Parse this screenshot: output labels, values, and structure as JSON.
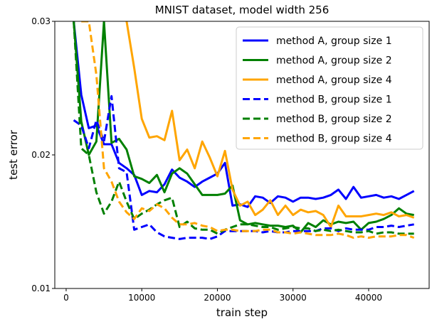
{
  "chart_data": {
    "type": "line",
    "title": "MNIST dataset, model width 256",
    "xlabel": "train step",
    "ylabel": "test error",
    "xlim": [
      -1500,
      48000
    ],
    "ylim": [
      0.01,
      0.03
    ],
    "x_ticks": [
      0,
      10000,
      20000,
      30000,
      40000
    ],
    "x_tick_labels": [
      "0",
      "10000",
      "20000",
      "30000",
      "40000"
    ],
    "y_ticks": [
      0.01,
      0.02,
      0.03
    ],
    "y_tick_labels": [
      "0.01",
      "0.02",
      "0.03"
    ],
    "grid": false,
    "legend_position": "top-right",
    "series": [
      {
        "name": "method A, group size 1",
        "color": "#0000ff",
        "style": "solid",
        "x": [
          1000,
          2000,
          3000,
          4000,
          5000,
          6000,
          7000,
          8000,
          9000,
          10000,
          11000,
          12000,
          13000,
          14000,
          15000,
          16000,
          17000,
          18000,
          19000,
          20000,
          21000,
          22000,
          23000,
          24000,
          25000,
          26000,
          27000,
          28000,
          29000,
          30000,
          31000,
          32000,
          33000,
          34000,
          35000,
          36000,
          37000,
          38000,
          39000,
          40000,
          41000,
          42000,
          43000,
          44000,
          45000,
          46000
        ],
        "values": [
          0.03,
          0.0245,
          0.022,
          0.0222,
          0.0208,
          0.0208,
          0.0194,
          0.019,
          0.0185,
          0.017,
          0.0173,
          0.0172,
          0.0178,
          0.0189,
          0.0183,
          0.018,
          0.0176,
          0.018,
          0.0183,
          0.0186,
          0.0194,
          0.0162,
          0.0163,
          0.0161,
          0.0169,
          0.0168,
          0.0164,
          0.0169,
          0.0168,
          0.0165,
          0.0168,
          0.0168,
          0.0167,
          0.0168,
          0.017,
          0.0174,
          0.0167,
          0.0176,
          0.0168,
          0.0169,
          0.017,
          0.0168,
          0.0169,
          0.0167,
          0.017,
          0.0173
        ]
      },
      {
        "name": "method A, group size 2",
        "color": "#008000",
        "style": "solid",
        "x": [
          1000,
          2000,
          3000,
          4000,
          5000,
          6000,
          7000,
          8000,
          9000,
          10000,
          11000,
          12000,
          13000,
          14000,
          15000,
          16000,
          17000,
          18000,
          19000,
          20000,
          21000,
          22000,
          23000,
          24000,
          25000,
          26000,
          27000,
          28000,
          29000,
          30000,
          31000,
          32000,
          33000,
          34000,
          35000,
          36000,
          37000,
          38000,
          39000,
          40000,
          41000,
          42000,
          43000,
          44000,
          45000,
          46000
        ],
        "values": [
          0.03,
          0.0225,
          0.02,
          0.021,
          0.03,
          0.0209,
          0.0212,
          0.0204,
          0.0184,
          0.0182,
          0.0179,
          0.0185,
          0.0172,
          0.0186,
          0.019,
          0.0186,
          0.0178,
          0.017,
          0.017,
          0.017,
          0.0171,
          0.0177,
          0.0151,
          0.0148,
          0.0149,
          0.0148,
          0.0147,
          0.0147,
          0.0146,
          0.0147,
          0.0142,
          0.0149,
          0.0146,
          0.0151,
          0.0148,
          0.015,
          0.0149,
          0.015,
          0.0144,
          0.0149,
          0.015,
          0.0152,
          0.0155,
          0.016,
          0.0156,
          0.0155
        ]
      },
      {
        "name": "method A, group size 4",
        "color": "#ffa500",
        "style": "solid",
        "x": [
          8000,
          9000,
          10000,
          11000,
          12000,
          13000,
          14000,
          15000,
          16000,
          17000,
          18000,
          19000,
          20000,
          21000,
          22000,
          23000,
          24000,
          25000,
          26000,
          27000,
          28000,
          29000,
          30000,
          31000,
          32000,
          33000,
          34000,
          35000,
          36000,
          37000,
          38000,
          39000,
          40000,
          41000,
          42000,
          43000,
          44000,
          45000,
          46000
        ],
        "values": [
          0.03,
          0.0265,
          0.0227,
          0.0213,
          0.0214,
          0.0211,
          0.0233,
          0.0196,
          0.0204,
          0.019,
          0.021,
          0.0198,
          0.0184,
          0.0203,
          0.0174,
          0.0162,
          0.0165,
          0.0155,
          0.0159,
          0.0166,
          0.0155,
          0.0162,
          0.0155,
          0.0159,
          0.0157,
          0.0158,
          0.0155,
          0.0146,
          0.0162,
          0.0154,
          0.0154,
          0.0154,
          0.0155,
          0.0156,
          0.0155,
          0.0157,
          0.0154,
          0.0155,
          0.0153
        ]
      },
      {
        "name": "method B, group size 1",
        "color": "#0000ff",
        "style": "dashed",
        "x": [
          1000,
          2000,
          3000,
          4000,
          5000,
          6000,
          7000,
          8000,
          9000,
          10000,
          11000,
          12000,
          13000,
          14000,
          15000,
          16000,
          17000,
          18000,
          19000,
          20000,
          21000,
          22000,
          23000,
          24000,
          25000,
          26000,
          27000,
          28000,
          29000,
          30000,
          31000,
          32000,
          33000,
          34000,
          35000,
          36000,
          37000,
          38000,
          39000,
          40000,
          41000,
          42000,
          43000,
          44000,
          45000,
          46000
        ],
        "values": [
          0.0226,
          0.0222,
          0.0205,
          0.0226,
          0.021,
          0.0244,
          0.019,
          0.0187,
          0.0144,
          0.0146,
          0.0148,
          0.0142,
          0.0139,
          0.0138,
          0.0137,
          0.0138,
          0.0138,
          0.0138,
          0.0137,
          0.0139,
          0.0143,
          0.0143,
          0.0143,
          0.0143,
          0.0143,
          0.0142,
          0.0143,
          0.0142,
          0.0142,
          0.0143,
          0.0143,
          0.0143,
          0.0143,
          0.0145,
          0.0145,
          0.0143,
          0.0145,
          0.0144,
          0.0144,
          0.0144,
          0.0146,
          0.0146,
          0.0147,
          0.0146,
          0.0147,
          0.0148
        ]
      },
      {
        "name": "method B, group size 2",
        "color": "#008000",
        "style": "dashed",
        "x": [
          1000,
          2000,
          3000,
          4000,
          5000,
          6000,
          7000,
          8000,
          9000,
          10000,
          11000,
          12000,
          13000,
          14000,
          15000,
          16000,
          17000,
          18000,
          19000,
          20000,
          21000,
          22000,
          23000,
          24000,
          25000,
          26000,
          27000,
          28000,
          29000,
          30000,
          31000,
          32000,
          33000,
          34000,
          35000,
          36000,
          37000,
          38000,
          39000,
          40000,
          41000,
          42000,
          43000,
          44000,
          45000,
          46000
        ],
        "values": [
          0.03,
          0.0205,
          0.02,
          0.0172,
          0.0156,
          0.0165,
          0.018,
          0.0165,
          0.0152,
          0.0156,
          0.0159,
          0.0163,
          0.0166,
          0.0168,
          0.0146,
          0.015,
          0.0145,
          0.0144,
          0.0144,
          0.0141,
          0.0144,
          0.0146,
          0.0148,
          0.0148,
          0.0147,
          0.0146,
          0.0146,
          0.0144,
          0.0145,
          0.0146,
          0.0145,
          0.0145,
          0.0143,
          0.0144,
          0.0143,
          0.0144,
          0.0143,
          0.0142,
          0.0142,
          0.0143,
          0.0141,
          0.0142,
          0.0142,
          0.0141,
          0.0141,
          0.0141
        ]
      },
      {
        "name": "method B, group size 4",
        "color": "#ffa500",
        "style": "dashed",
        "x": [
          2000,
          3000,
          4000,
          5000,
          6000,
          7000,
          8000,
          9000,
          10000,
          11000,
          12000,
          13000,
          14000,
          15000,
          16000,
          17000,
          18000,
          19000,
          20000,
          21000,
          22000,
          23000,
          24000,
          25000,
          26000,
          27000,
          28000,
          29000,
          30000,
          31000,
          32000,
          33000,
          34000,
          35000,
          36000,
          37000,
          38000,
          39000,
          40000,
          41000,
          42000,
          43000,
          44000,
          45000,
          46000
        ],
        "values": [
          0.03,
          0.03,
          0.026,
          0.019,
          0.018,
          0.0165,
          0.0157,
          0.0152,
          0.016,
          0.0158,
          0.0163,
          0.016,
          0.0153,
          0.0148,
          0.0148,
          0.0149,
          0.0147,
          0.0146,
          0.0143,
          0.0144,
          0.0144,
          0.0143,
          0.0143,
          0.0143,
          0.0144,
          0.0144,
          0.0142,
          0.0142,
          0.0141,
          0.0142,
          0.0141,
          0.014,
          0.014,
          0.014,
          0.0141,
          0.014,
          0.0138,
          0.0139,
          0.0138,
          0.0139,
          0.0139,
          0.0139,
          0.014,
          0.014,
          0.0138
        ]
      }
    ]
  }
}
